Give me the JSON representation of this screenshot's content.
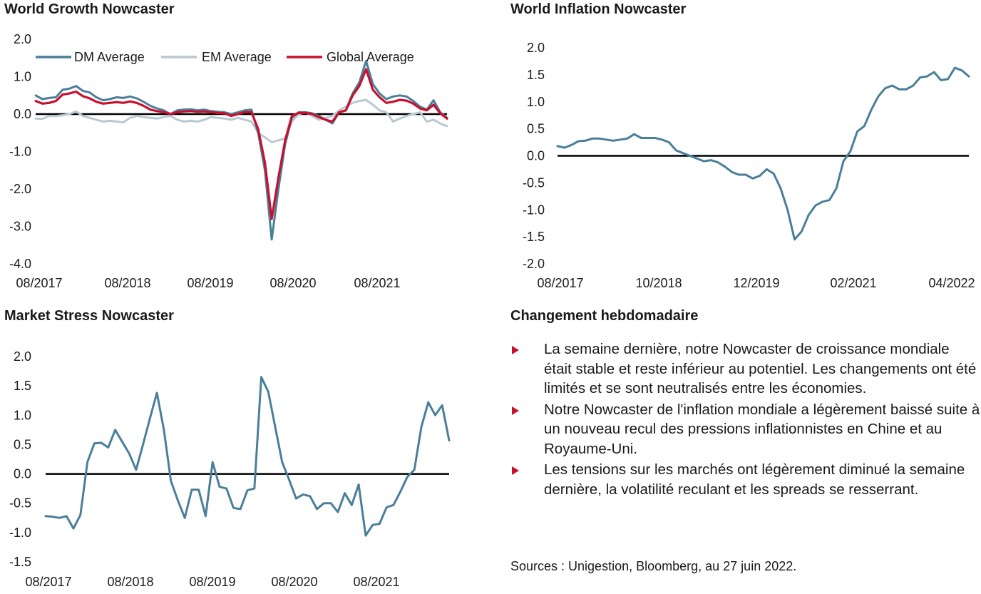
{
  "commentary": {
    "title": "Changement hebdomadaire",
    "bullets": [
      "La semaine dernière, notre Nowcaster de croissance mondiale était stable et reste inférieur au potentiel. Les changements ont été limités et se sont neutralisés entre les économies.",
      "Notre Nowcaster de l'inflation mondiale a légèrement baissé suite à un nouveau recul des pressions inflationnistes en Chine et au Royaume-Uni.",
      "Les tensions sur les marchés ont légèrement diminué la semaine dernière, la volatilité reculant et les spreads se resserrant."
    ],
    "source": "Sources : Unigestion, Bloomberg, au 27 juin 2022.",
    "bullet_color": "#c8102e"
  },
  "chart_data": [
    {
      "id": "growth",
      "type": "line",
      "title": "World Growth Nowcaster",
      "ylim": [
        -4.0,
        2.0
      ],
      "yticks": [
        "2.0",
        "1.0",
        "0.0",
        "-1.0",
        "-2.0",
        "-3.0",
        "-4.0"
      ],
      "xticks": [
        "08/2017",
        "08/2018",
        "08/2019",
        "08/2020",
        "08/2021"
      ],
      "legend_position": "top",
      "zero_line": true,
      "series": [
        {
          "name": "DM Average",
          "color": "#4a7f99",
          "values": [
            0.5,
            0.4,
            0.43,
            0.45,
            0.65,
            0.68,
            0.75,
            0.62,
            0.58,
            0.45,
            0.37,
            0.4,
            0.45,
            0.43,
            0.47,
            0.42,
            0.33,
            0.22,
            0.15,
            0.1,
            0.0,
            0.1,
            0.12,
            0.13,
            0.1,
            0.12,
            0.08,
            0.06,
            0.05,
            0.0,
            0.05,
            0.1,
            0.12,
            -0.5,
            -1.5,
            -3.35,
            -2.0,
            -0.8,
            -0.1,
            0.05,
            0.05,
            0.02,
            -0.05,
            -0.15,
            -0.25,
            0.05,
            0.1,
            0.55,
            0.85,
            1.42,
            0.8,
            0.55,
            0.4,
            0.47,
            0.5,
            0.47,
            0.35,
            0.2,
            0.12,
            0.37,
            0.05,
            -0.1
          ]
        },
        {
          "name": "EM Average",
          "color": "#b8c9d2",
          "values": [
            -0.12,
            -0.13,
            -0.05,
            -0.05,
            -0.03,
            0.0,
            0.07,
            -0.05,
            -0.1,
            -0.15,
            -0.2,
            -0.18,
            -0.2,
            -0.22,
            -0.1,
            -0.05,
            -0.08,
            -0.1,
            -0.12,
            -0.08,
            -0.05,
            -0.15,
            -0.2,
            -0.18,
            -0.2,
            -0.15,
            -0.08,
            -0.1,
            -0.12,
            -0.15,
            -0.1,
            -0.15,
            -0.2,
            -0.5,
            -0.62,
            -0.75,
            -0.7,
            -0.65,
            -0.2,
            0.0,
            0.05,
            -0.05,
            -0.15,
            -0.1,
            -0.05,
            0.1,
            0.2,
            0.3,
            0.35,
            0.38,
            0.25,
            0.1,
            0.05,
            -0.2,
            -0.12,
            -0.05,
            0.0,
            0.05,
            -0.2,
            -0.15,
            -0.25,
            -0.32
          ]
        },
        {
          "name": "Global Average",
          "color": "#c8102e",
          "values": [
            0.35,
            0.28,
            0.3,
            0.35,
            0.52,
            0.55,
            0.6,
            0.48,
            0.42,
            0.33,
            0.28,
            0.3,
            0.32,
            0.3,
            0.34,
            0.3,
            0.22,
            0.12,
            0.08,
            0.05,
            0.0,
            0.05,
            0.07,
            0.08,
            0.06,
            0.07,
            0.05,
            0.03,
            0.02,
            -0.05,
            0.0,
            0.05,
            0.05,
            -0.4,
            -1.3,
            -2.8,
            -1.7,
            -0.7,
            -0.05,
            0.03,
            0.03,
            0.0,
            -0.08,
            -0.15,
            -0.2,
            0.05,
            0.1,
            0.5,
            0.75,
            1.2,
            0.65,
            0.45,
            0.3,
            0.33,
            0.38,
            0.36,
            0.28,
            0.15,
            0.1,
            0.25,
            0.02,
            -0.12
          ]
        }
      ]
    },
    {
      "id": "inflation",
      "type": "line",
      "title": "World Inflation Nowcaster",
      "ylim": [
        -2.0,
        2.0
      ],
      "yticks": [
        "2.0",
        "1.5",
        "1.0",
        "0.5",
        "0.0",
        "-0.5",
        "-1.0",
        "-1.5",
        "-2.0"
      ],
      "xticks": [
        "08/2017",
        "10/2018",
        "12/2019",
        "02/2021",
        "04/2022"
      ],
      "zero_line": true,
      "series": [
        {
          "name": "",
          "color": "#4a7f99",
          "values": [
            0.18,
            0.15,
            0.2,
            0.27,
            0.28,
            0.32,
            0.32,
            0.3,
            0.28,
            0.3,
            0.32,
            0.4,
            0.33,
            0.33,
            0.33,
            0.3,
            0.25,
            0.1,
            0.05,
            0.0,
            -0.05,
            -0.1,
            -0.08,
            -0.12,
            -0.2,
            -0.3,
            -0.35,
            -0.35,
            -0.42,
            -0.37,
            -0.25,
            -0.33,
            -0.6,
            -1.0,
            -1.55,
            -1.4,
            -1.1,
            -0.92,
            -0.85,
            -0.82,
            -0.6,
            -0.1,
            0.08,
            0.45,
            0.55,
            0.85,
            1.1,
            1.25,
            1.3,
            1.23,
            1.23,
            1.3,
            1.45,
            1.47,
            1.55,
            1.4,
            1.42,
            1.63,
            1.58,
            1.47
          ]
        }
      ]
    },
    {
      "id": "stress",
      "type": "line",
      "title": "Market Stress Nowcaster",
      "ylim": [
        -1.5,
        2.0
      ],
      "yticks": [
        "2.0",
        "1.5",
        "1.0",
        "0.5",
        "0.0",
        "-0.5",
        "-1.0",
        "-1.5"
      ],
      "xticks": [
        "08/2017",
        "08/2018",
        "08/2019",
        "08/2020",
        "08/2021"
      ],
      "zero_line": true,
      "series": [
        {
          "name": "",
          "color": "#4a7f99",
          "values": [
            -0.72,
            -0.73,
            -0.75,
            -0.72,
            -0.93,
            -0.7,
            0.2,
            0.52,
            0.53,
            0.45,
            0.75,
            0.55,
            0.35,
            0.07,
            0.5,
            0.95,
            1.38,
            0.75,
            -0.12,
            -0.45,
            -0.75,
            -0.27,
            -0.27,
            -0.72,
            0.2,
            -0.22,
            -0.25,
            -0.58,
            -0.6,
            -0.28,
            -0.25,
            1.65,
            1.4,
            0.8,
            0.2,
            -0.1,
            -0.42,
            -0.35,
            -0.38,
            -0.6,
            -0.5,
            -0.5,
            -0.65,
            -0.33,
            -0.53,
            -0.18,
            -1.05,
            -0.87,
            -0.85,
            -0.57,
            -0.53,
            -0.3,
            -0.05,
            0.07,
            0.8,
            1.22,
            1.0,
            1.17,
            0.57
          ]
        }
      ]
    }
  ]
}
